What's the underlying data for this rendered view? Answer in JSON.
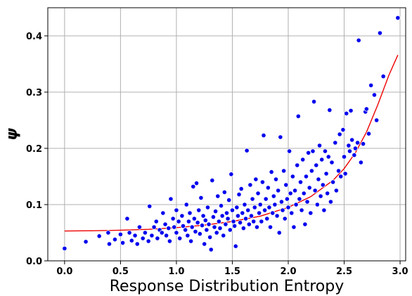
{
  "chart_data": {
    "type": "scatter",
    "title": "",
    "xlabel": "Response Distribution Entropy",
    "ylabel": "ψ",
    "xlim": [
      -0.15,
      3.05
    ],
    "ylim": [
      0.0,
      0.45
    ],
    "xticks": [
      0.0,
      0.5,
      1.0,
      1.5,
      2.0,
      2.5,
      3.0
    ],
    "xtick_labels": [
      "0.0",
      "0.5",
      "1.0",
      "1.5",
      "2.0",
      "2.5",
      "3.0"
    ],
    "yticks": [
      0.0,
      0.1,
      0.2,
      0.3,
      0.4
    ],
    "ytick_labels": [
      "0.0",
      "0.1",
      "0.2",
      "0.3",
      "0.4"
    ],
    "grid": true,
    "point_color": "#0000ee",
    "point_edge_color": "#ffffff",
    "fit_color": "#ee0000",
    "fit": {
      "type": "exponential",
      "x": [
        0.0,
        0.25,
        0.5,
        0.75,
        1.0,
        1.25,
        1.5,
        1.75,
        2.0,
        2.2,
        2.4,
        2.5,
        2.6,
        2.7,
        2.8,
        2.9,
        2.98
      ],
      "y": [
        0.053,
        0.0535,
        0.0545,
        0.056,
        0.059,
        0.0635,
        0.07,
        0.0795,
        0.095,
        0.114,
        0.143,
        0.164,
        0.192,
        0.229,
        0.277,
        0.33,
        0.366
      ]
    },
    "points": [
      [
        0.0,
        0.022
      ],
      [
        0.19,
        0.034
      ],
      [
        0.31,
        0.044
      ],
      [
        0.39,
        0.05
      ],
      [
        0.4,
        0.03
      ],
      [
        0.45,
        0.038
      ],
      [
        0.5,
        0.047
      ],
      [
        0.52,
        0.032
      ],
      [
        0.56,
        0.075
      ],
      [
        0.58,
        0.05
      ],
      [
        0.6,
        0.036
      ],
      [
        0.63,
        0.045
      ],
      [
        0.65,
        0.03
      ],
      [
        0.67,
        0.06
      ],
      [
        0.7,
        0.04
      ],
      [
        0.72,
        0.05
      ],
      [
        0.75,
        0.035
      ],
      [
        0.76,
        0.097
      ],
      [
        0.78,
        0.045
      ],
      [
        0.8,
        0.06
      ],
      [
        0.82,
        0.07
      ],
      [
        0.83,
        0.04
      ],
      [
        0.85,
        0.055
      ],
      [
        0.87,
        0.05
      ],
      [
        0.88,
        0.085
      ],
      [
        0.9,
        0.065
      ],
      [
        0.91,
        0.045
      ],
      [
        0.93,
        0.058
      ],
      [
        0.94,
        0.035
      ],
      [
        0.95,
        0.11
      ],
      [
        0.97,
        0.075
      ],
      [
        0.98,
        0.06
      ],
      [
        1.0,
        0.05
      ],
      [
        1.0,
        0.09
      ],
      [
        1.02,
        0.07
      ],
      [
        1.03,
        0.04
      ],
      [
        1.05,
        0.08
      ],
      [
        1.06,
        0.062
      ],
      [
        1.08,
        0.055
      ],
      [
        1.09,
        0.1
      ],
      [
        1.1,
        0.045
      ],
      [
        1.11,
        0.07
      ],
      [
        1.12,
        0.085
      ],
      [
        1.13,
        0.035
      ],
      [
        1.14,
        0.06
      ],
      [
        1.15,
        0.132
      ],
      [
        1.16,
        0.075
      ],
      [
        1.17,
        0.052
      ],
      [
        1.18,
        0.138
      ],
      [
        1.19,
        0.068
      ],
      [
        1.2,
        0.09
      ],
      [
        1.21,
        0.048
      ],
      [
        1.22,
        0.112
      ],
      [
        1.23,
        0.063
      ],
      [
        1.24,
        0.08
      ],
      [
        1.25,
        0.03
      ],
      [
        1.26,
        0.072
      ],
      [
        1.27,
        0.055
      ],
      [
        1.28,
        0.095
      ],
      [
        1.29,
        0.065
      ],
      [
        1.3,
        0.042
      ],
      [
        1.31,
        0.02
      ],
      [
        1.32,
        0.143
      ],
      [
        1.33,
        0.078
      ],
      [
        1.34,
        0.06
      ],
      [
        1.35,
        0.088
      ],
      [
        1.36,
        0.05
      ],
      [
        1.37,
        0.115
      ],
      [
        1.38,
        0.07
      ],
      [
        1.39,
        0.058
      ],
      [
        1.4,
        0.098
      ],
      [
        1.41,
        0.08
      ],
      [
        1.42,
        0.045
      ],
      [
        1.43,
        0.122
      ],
      [
        1.44,
        0.065
      ],
      [
        1.45,
        0.085
      ],
      [
        1.46,
        0.075
      ],
      [
        1.47,
        0.108
      ],
      [
        1.48,
        0.055
      ],
      [
        1.49,
        0.154
      ],
      [
        1.5,
        0.09
      ],
      [
        1.51,
        0.07
      ],
      [
        1.52,
        0.062
      ],
      [
        1.53,
        0.026
      ],
      [
        1.54,
        0.095
      ],
      [
        1.55,
        0.08
      ],
      [
        1.56,
        0.118
      ],
      [
        1.57,
        0.068
      ],
      [
        1.58,
        0.128
      ],
      [
        1.59,
        0.085
      ],
      [
        1.6,
        0.058
      ],
      [
        1.61,
        0.1
      ],
      [
        1.62,
        0.075
      ],
      [
        1.63,
        0.196
      ],
      [
        1.64,
        0.09
      ],
      [
        1.65,
        0.065
      ],
      [
        1.66,
        0.135
      ],
      [
        1.67,
        0.08
      ],
      [
        1.68,
        0.11
      ],
      [
        1.69,
        0.07
      ],
      [
        1.7,
        0.095
      ],
      [
        1.71,
        0.145
      ],
      [
        1.72,
        0.06
      ],
      [
        1.73,
        0.12
      ],
      [
        1.74,
        0.085
      ],
      [
        1.75,
        0.1
      ],
      [
        1.76,
        0.07
      ],
      [
        1.77,
        0.14
      ],
      [
        1.78,
        0.223
      ],
      [
        1.79,
        0.09
      ],
      [
        1.8,
        0.11
      ],
      [
        1.81,
        0.075
      ],
      [
        1.82,
        0.13
      ],
      [
        1.83,
        0.095
      ],
      [
        1.84,
        0.06
      ],
      [
        1.85,
        0.158
      ],
      [
        1.86,
        0.085
      ],
      [
        1.87,
        0.115
      ],
      [
        1.88,
        0.1
      ],
      [
        1.89,
        0.145
      ],
      [
        1.9,
        0.08
      ],
      [
        1.91,
        0.125
      ],
      [
        1.92,
        0.05
      ],
      [
        1.93,
        0.22
      ],
      [
        1.94,
        0.105
      ],
      [
        1.95,
        0.09
      ],
      [
        1.96,
        0.16
      ],
      [
        1.97,
        0.075
      ],
      [
        1.98,
        0.135
      ],
      [
        1.99,
        0.11
      ],
      [
        2.0,
        0.095
      ],
      [
        2.01,
        0.195
      ],
      [
        2.02,
        0.12
      ],
      [
        2.03,
        0.085
      ],
      [
        2.04,
        0.15
      ],
      [
        2.05,
        0.06
      ],
      [
        2.06,
        0.125
      ],
      [
        2.07,
        0.1
      ],
      [
        2.08,
        0.17
      ],
      [
        2.09,
        0.257
      ],
      [
        2.1,
        0.11
      ],
      [
        2.11,
        0.14
      ],
      [
        2.12,
        0.09
      ],
      [
        2.13,
        0.18
      ],
      [
        2.14,
        0.12
      ],
      [
        2.15,
        0.065
      ],
      [
        2.16,
        0.15
      ],
      [
        2.17,
        0.105
      ],
      [
        2.18,
        0.192
      ],
      [
        2.19,
        0.13
      ],
      [
        2.2,
        0.085
      ],
      [
        2.21,
        0.16
      ],
      [
        2.22,
        0.195
      ],
      [
        2.23,
        0.283
      ],
      [
        2.24,
        0.125
      ],
      [
        2.25,
        0.17
      ],
      [
        2.26,
        0.1
      ],
      [
        2.27,
        0.145
      ],
      [
        2.28,
        0.205
      ],
      [
        2.29,
        0.115
      ],
      [
        2.3,
        0.18
      ],
      [
        2.31,
        0.135
      ],
      [
        2.32,
        0.09
      ],
      [
        2.33,
        0.195
      ],
      [
        2.34,
        0.155
      ],
      [
        2.35,
        0.12
      ],
      [
        2.36,
        0.185
      ],
      [
        2.37,
        0.268
      ],
      [
        2.38,
        0.105
      ],
      [
        2.39,
        0.175
      ],
      [
        2.4,
        0.14
      ],
      [
        2.42,
        0.21
      ],
      [
        2.43,
        0.125
      ],
      [
        2.45,
        0.16
      ],
      [
        2.46,
        0.225
      ],
      [
        2.47,
        0.15
      ],
      [
        2.49,
        0.233
      ],
      [
        2.5,
        0.185
      ],
      [
        2.51,
        0.155
      ],
      [
        2.52,
        0.262
      ],
      [
        2.54,
        0.205
      ],
      [
        2.55,
        0.195
      ],
      [
        2.56,
        0.267
      ],
      [
        2.57,
        0.215
      ],
      [
        2.59,
        0.188
      ],
      [
        2.6,
        0.2
      ],
      [
        2.62,
        0.21
      ],
      [
        2.63,
        0.392
      ],
      [
        2.65,
        0.175
      ],
      [
        2.67,
        0.208
      ],
      [
        2.69,
        0.265
      ],
      [
        2.7,
        0.27
      ],
      [
        2.72,
        0.226
      ],
      [
        2.74,
        0.312
      ],
      [
        2.77,
        0.295
      ],
      [
        2.79,
        0.25
      ],
      [
        2.82,
        0.405
      ],
      [
        2.85,
        0.328
      ],
      [
        2.98,
        0.432
      ]
    ]
  }
}
